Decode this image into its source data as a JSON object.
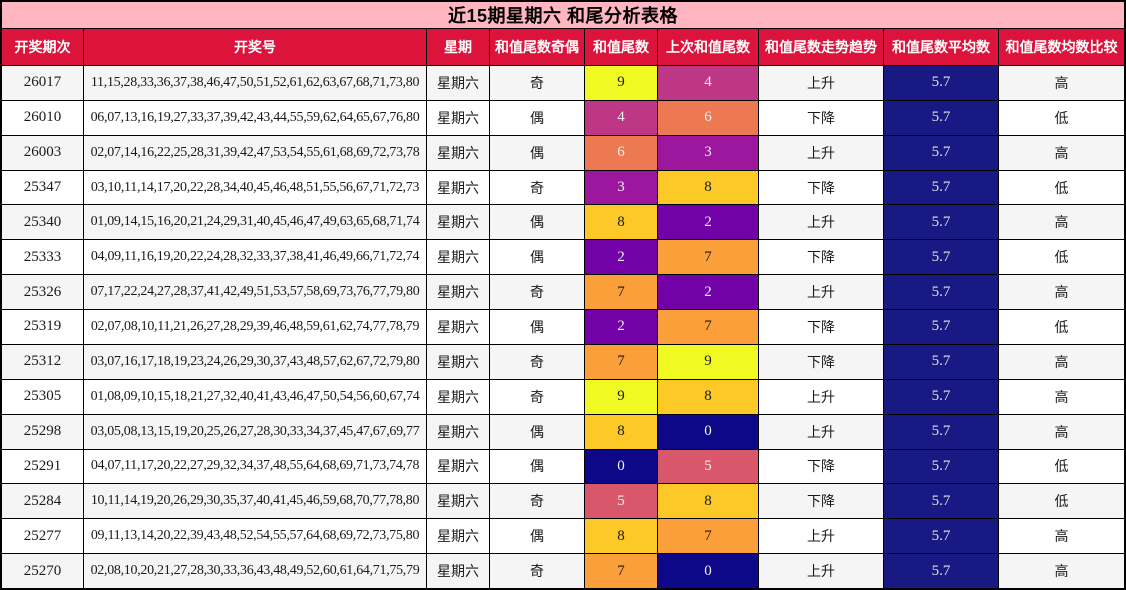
{
  "title": "近15期星期六 和尾分析表格",
  "headers": [
    "开奖期次",
    "开奖号",
    "星期",
    "和值尾数奇偶",
    "和值尾数",
    "上次和值尾数",
    "和值尾数走势趋势",
    "和值尾数平均数",
    "和值尾数均数比较"
  ],
  "rows": [
    {
      "period": "26017",
      "numbers": "11,15,28,33,36,37,38,46,47,50,51,52,61,62,63,67,68,71,73,80",
      "week": "星期六",
      "parity": "奇",
      "tail": "9",
      "prev_tail": "4",
      "trend": "上升",
      "avg": "5.7",
      "compare": "高"
    },
    {
      "period": "26010",
      "numbers": "06,07,13,16,19,27,33,37,39,42,43,44,55,59,62,64,65,67,76,80",
      "week": "星期六",
      "parity": "偶",
      "tail": "4",
      "prev_tail": "6",
      "trend": "下降",
      "avg": "5.7",
      "compare": "低"
    },
    {
      "period": "26003",
      "numbers": "02,07,14,16,22,25,28,31,39,42,47,53,54,55,61,68,69,72,73,78",
      "week": "星期六",
      "parity": "偶",
      "tail": "6",
      "prev_tail": "3",
      "trend": "上升",
      "avg": "5.7",
      "compare": "高"
    },
    {
      "period": "25347",
      "numbers": "03,10,11,14,17,20,22,28,34,40,45,46,48,51,55,56,67,71,72,73",
      "week": "星期六",
      "parity": "奇",
      "tail": "3",
      "prev_tail": "8",
      "trend": "下降",
      "avg": "5.7",
      "compare": "低"
    },
    {
      "period": "25340",
      "numbers": "01,09,14,15,16,20,21,24,29,31,40,45,46,47,49,63,65,68,71,74",
      "week": "星期六",
      "parity": "偶",
      "tail": "8",
      "prev_tail": "2",
      "trend": "上升",
      "avg": "5.7",
      "compare": "高"
    },
    {
      "period": "25333",
      "numbers": "04,09,11,16,19,20,22,24,28,32,33,37,38,41,46,49,66,71,72,74",
      "week": "星期六",
      "parity": "偶",
      "tail": "2",
      "prev_tail": "7",
      "trend": "下降",
      "avg": "5.7",
      "compare": "低"
    },
    {
      "period": "25326",
      "numbers": "07,17,22,24,27,28,37,41,42,49,51,53,57,58,69,73,76,77,79,80",
      "week": "星期六",
      "parity": "奇",
      "tail": "7",
      "prev_tail": "2",
      "trend": "上升",
      "avg": "5.7",
      "compare": "高"
    },
    {
      "period": "25319",
      "numbers": "02,07,08,10,11,21,26,27,28,29,39,46,48,59,61,62,74,77,78,79",
      "week": "星期六",
      "parity": "偶",
      "tail": "2",
      "prev_tail": "7",
      "trend": "下降",
      "avg": "5.7",
      "compare": "低"
    },
    {
      "period": "25312",
      "numbers": "03,07,16,17,18,19,23,24,26,29,30,37,43,48,57,62,67,72,79,80",
      "week": "星期六",
      "parity": "奇",
      "tail": "7",
      "prev_tail": "9",
      "trend": "下降",
      "avg": "5.7",
      "compare": "高"
    },
    {
      "period": "25305",
      "numbers": "01,08,09,10,15,18,21,27,32,40,41,43,46,47,50,54,56,60,67,74",
      "week": "星期六",
      "parity": "奇",
      "tail": "9",
      "prev_tail": "8",
      "trend": "上升",
      "avg": "5.7",
      "compare": "高"
    },
    {
      "period": "25298",
      "numbers": "03,05,08,13,15,19,20,25,26,27,28,30,33,34,37,45,47,67,69,77",
      "week": "星期六",
      "parity": "偶",
      "tail": "8",
      "prev_tail": "0",
      "trend": "上升",
      "avg": "5.7",
      "compare": "高"
    },
    {
      "period": "25291",
      "numbers": "04,07,11,17,20,22,27,29,32,34,37,48,55,64,68,69,71,73,74,78",
      "week": "星期六",
      "parity": "偶",
      "tail": "0",
      "prev_tail": "5",
      "trend": "下降",
      "avg": "5.7",
      "compare": "低"
    },
    {
      "period": "25284",
      "numbers": "10,11,14,19,20,26,29,30,35,37,40,41,45,46,59,68,70,77,78,80",
      "week": "星期六",
      "parity": "奇",
      "tail": "5",
      "prev_tail": "8",
      "trend": "下降",
      "avg": "5.7",
      "compare": "低"
    },
    {
      "period": "25277",
      "numbers": "09,11,13,14,20,22,39,43,48,52,54,55,57,64,68,69,72,73,75,80",
      "week": "星期六",
      "parity": "偶",
      "tail": "8",
      "prev_tail": "7",
      "trend": "上升",
      "avg": "5.7",
      "compare": "高"
    },
    {
      "period": "25270",
      "numbers": "02,08,10,20,21,27,28,30,33,36,43,48,49,52,60,61,64,71,75,79",
      "week": "星期六",
      "parity": "奇",
      "tail": "7",
      "prev_tail": "0",
      "trend": "上升",
      "avg": "5.7",
      "compare": "高"
    }
  ],
  "colors": {
    "title_bg": "#FFB6C1",
    "title_text": "#000000",
    "header_bg": "#DC143C",
    "header_text": "#FFFFFF",
    "row_bg": "#FFFFFF",
    "row_alt_bg": "#F5F5F5",
    "body_text": "#1A1A1A",
    "avg_bg": "#191983",
    "avg_text": "#E0E0E0",
    "value_palette": [
      "#0D0887",
      "#46039F",
      "#7201A8",
      "#9C179E",
      "#BD3786",
      "#D8576B",
      "#ED7953",
      "#FB9F3A",
      "#FDC926",
      "#F0F921"
    ],
    "value_text_dark": "#1A1A1A",
    "value_text_light": "#EFEFEF"
  },
  "chart_data": {
    "type": "table",
    "title": "近15期星期六 和尾分析表格",
    "columns": [
      "开奖期次",
      "开奖号",
      "星期",
      "和值尾数奇偶",
      "和值尾数",
      "上次和值尾数",
      "和值尾数走势趋势",
      "和值尾数平均数",
      "和值尾数均数比较"
    ],
    "rows": [
      [
        "26017",
        "11,15,28,33,36,37,38,46,47,50,51,52,61,62,63,67,68,71,73,80",
        "星期六",
        "奇",
        9,
        4,
        "上升",
        5.7,
        "高"
      ],
      [
        "26010",
        "06,07,13,16,19,27,33,37,39,42,43,44,55,59,62,64,65,67,76,80",
        "星期六",
        "偶",
        4,
        6,
        "下降",
        5.7,
        "低"
      ],
      [
        "26003",
        "02,07,14,16,22,25,28,31,39,42,47,53,54,55,61,68,69,72,73,78",
        "星期六",
        "偶",
        6,
        3,
        "上升",
        5.7,
        "高"
      ],
      [
        "25347",
        "03,10,11,14,17,20,22,28,34,40,45,46,48,51,55,56,67,71,72,73",
        "星期六",
        "奇",
        3,
        8,
        "下降",
        5.7,
        "低"
      ],
      [
        "25340",
        "01,09,14,15,16,20,21,24,29,31,40,45,46,47,49,63,65,68,71,74",
        "星期六",
        "偶",
        8,
        2,
        "上升",
        5.7,
        "高"
      ],
      [
        "25333",
        "04,09,11,16,19,20,22,24,28,32,33,37,38,41,46,49,66,71,72,74",
        "星期六",
        "偶",
        2,
        7,
        "下降",
        5.7,
        "低"
      ],
      [
        "25326",
        "07,17,22,24,27,28,37,41,42,49,51,53,57,58,69,73,76,77,79,80",
        "星期六",
        "奇",
        7,
        2,
        "上升",
        5.7,
        "高"
      ],
      [
        "25319",
        "02,07,08,10,11,21,26,27,28,29,39,46,48,59,61,62,74,77,78,79",
        "星期六",
        "偶",
        2,
        7,
        "下降",
        5.7,
        "低"
      ],
      [
        "25312",
        "03,07,16,17,18,19,23,24,26,29,30,37,43,48,57,62,67,72,79,80",
        "星期六",
        "奇",
        7,
        9,
        "下降",
        5.7,
        "高"
      ],
      [
        "25305",
        "01,08,09,10,15,18,21,27,32,40,41,43,46,47,50,54,56,60,67,74",
        "星期六",
        "奇",
        9,
        8,
        "上升",
        5.7,
        "高"
      ],
      [
        "25298",
        "03,05,08,13,15,19,20,25,26,27,28,30,33,34,37,45,47,67,69,77",
        "星期六",
        "偶",
        8,
        0,
        "上升",
        5.7,
        "高"
      ],
      [
        "25291",
        "04,07,11,17,20,22,27,29,32,34,37,48,55,64,68,69,71,73,74,78",
        "星期六",
        "偶",
        0,
        5,
        "下降",
        5.7,
        "低"
      ],
      [
        "25284",
        "10,11,14,19,20,26,29,30,35,37,40,41,45,46,59,68,70,77,78,80",
        "星期六",
        "奇",
        5,
        8,
        "下降",
        5.7,
        "低"
      ],
      [
        "25277",
        "09,11,13,14,20,22,39,43,48,52,54,55,57,64,68,69,72,73,75,80",
        "星期六",
        "偶",
        8,
        7,
        "上升",
        5.7,
        "高"
      ],
      [
        "25270",
        "02,08,10,20,21,27,28,30,33,36,43,48,49,52,60,61,64,71,75,79",
        "星期六",
        "奇",
        7,
        0,
        "上升",
        5.7,
        "高"
      ]
    ]
  }
}
